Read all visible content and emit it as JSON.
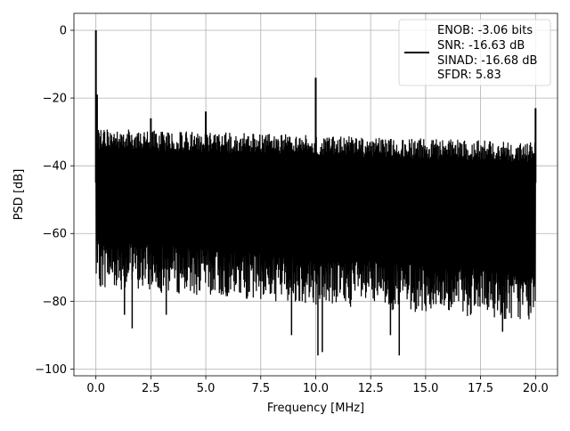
{
  "chart_data": {
    "type": "line",
    "title": "",
    "xlabel": "Frequency [MHz]",
    "ylabel": "PSD [dB]",
    "xlim": [
      -1.0,
      21.0
    ],
    "ylim": [
      -102.0,
      5.0
    ],
    "xticks": [
      0.0,
      2.5,
      5.0,
      7.5,
      10.0,
      12.5,
      15.0,
      17.5,
      20.0
    ],
    "xtick_labels": [
      "0.0",
      "2.5",
      "5.0",
      "7.5",
      "10.0",
      "12.5",
      "15.0",
      "17.5",
      "20.0"
    ],
    "yticks": [
      0,
      -20,
      -40,
      -60,
      -80,
      -100
    ],
    "ytick_labels": [
      "0",
      "−20",
      "−40",
      "−60",
      "−80",
      "−100"
    ],
    "grid": true,
    "legend_position": "top-right",
    "line_color": "#000000",
    "legend_entries": [
      "ENOB: -3.06 bits",
      "SNR: -16.63 dB",
      "SINAD: -16.68 dB",
      "SFDR: 5.83"
    ],
    "series": [
      {
        "noise_band_db": {
          "upper_start": -29,
          "upper_end": -33,
          "lower_start": -70,
          "lower_end": -80
        },
        "peaks": [
          {
            "x": 0.0,
            "y": 0
          },
          {
            "x": 0.05,
            "y": -19
          },
          {
            "x": 2.5,
            "y": -26
          },
          {
            "x": 5.0,
            "y": -24
          },
          {
            "x": 10.0,
            "y": -14
          },
          {
            "x": 20.0,
            "y": -23
          }
        ],
        "dips": [
          {
            "x": 1.3,
            "y": -84
          },
          {
            "x": 1.65,
            "y": -88
          },
          {
            "x": 3.2,
            "y": -84
          },
          {
            "x": 8.9,
            "y": -90
          },
          {
            "x": 10.1,
            "y": -96
          },
          {
            "x": 10.3,
            "y": -95
          },
          {
            "x": 13.4,
            "y": -90
          },
          {
            "x": 13.8,
            "y": -96
          },
          {
            "x": 18.5,
            "y": -89
          }
        ]
      }
    ]
  }
}
